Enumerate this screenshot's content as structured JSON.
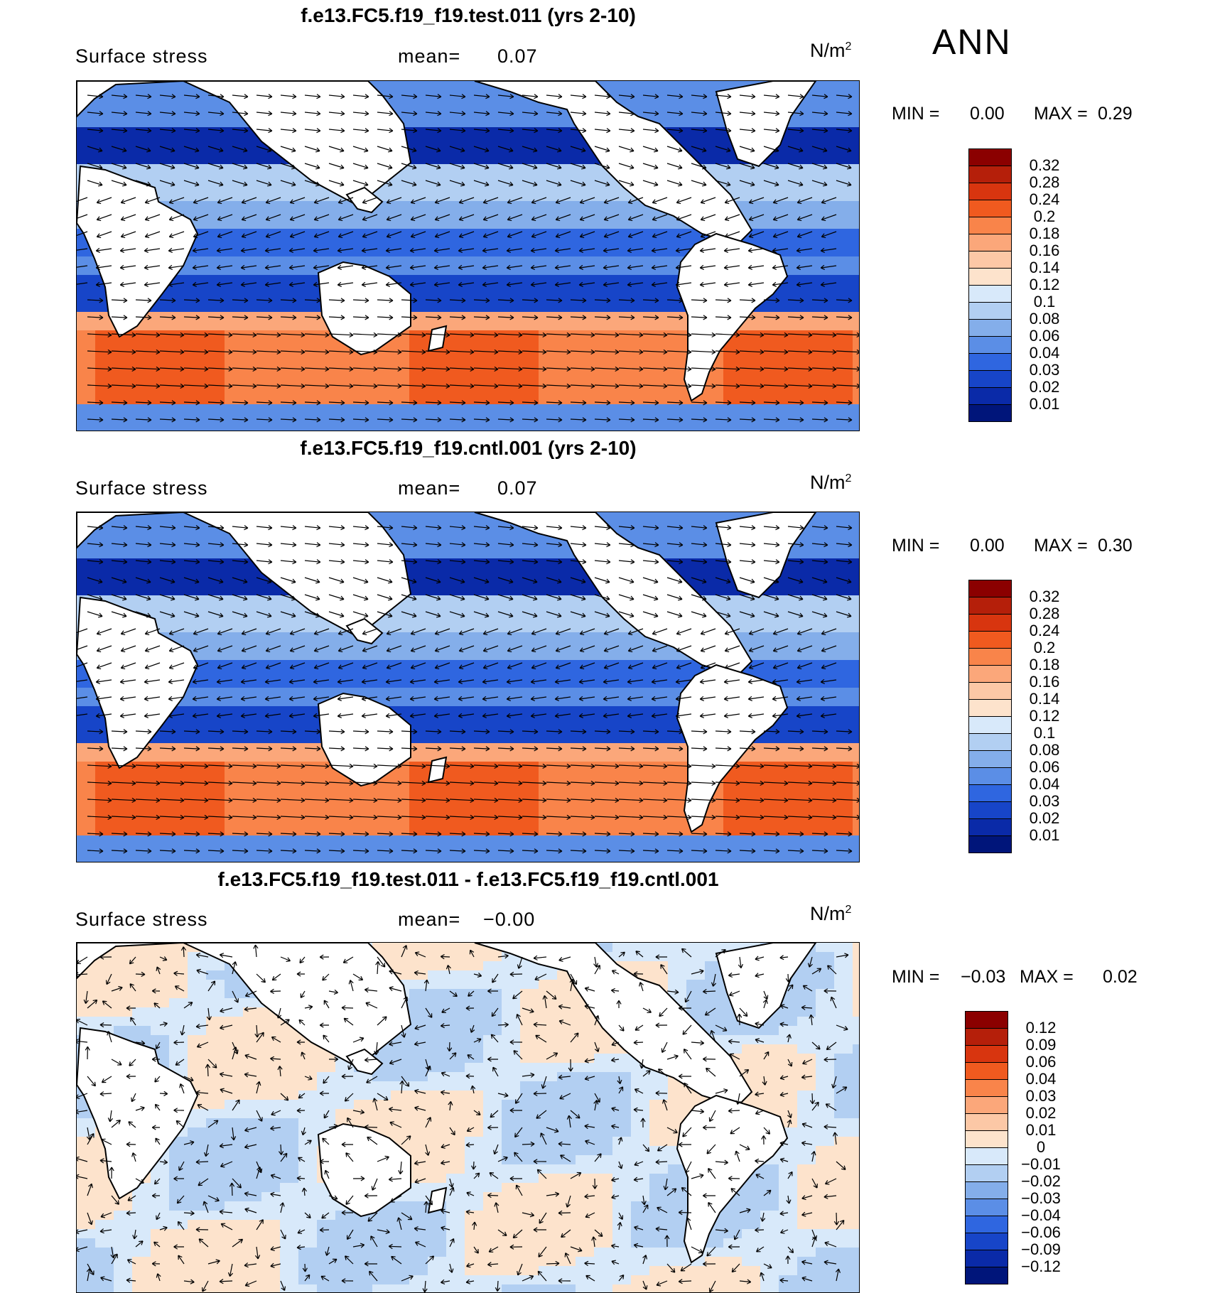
{
  "season": "ANN",
  "panels": [
    {
      "title": "f.e13.FC5.f19_f19.test.011 (yrs 2-10)",
      "variable": "Surface stress",
      "mean_label": "mean=",
      "mean_value": "0.07",
      "units": "N/m",
      "units_exp": "2",
      "min_label": "MIN =",
      "min_value": "0.00",
      "max_label": "MAX =",
      "max_value": "0.29",
      "colorbar": {
        "labels": [
          "0.32",
          "0.28",
          "0.24",
          "0.2",
          "0.18",
          "0.16",
          "0.14",
          "0.12",
          "0.1",
          "0.08",
          "0.06",
          "0.04",
          "0.03",
          "0.02",
          "0.01"
        ],
        "colors": [
          "#8b0000",
          "#b51f0a",
          "#d8350f",
          "#f05a1f",
          "#f9844a",
          "#fba77a",
          "#fcc8a6",
          "#fde3cc",
          "#d8e9fa",
          "#b2cff2",
          "#84aeea",
          "#5b8ee6",
          "#2f66e0",
          "#1745c8",
          "#0a2aa8",
          "#00157a"
        ]
      }
    },
    {
      "title": "f.e13.FC5.f19_f19.cntl.001 (yrs 2-10)",
      "variable": "Surface stress",
      "mean_label": "mean=",
      "mean_value": "0.07",
      "units": "N/m",
      "units_exp": "2",
      "min_label": "MIN =",
      "min_value": "0.00",
      "max_label": "MAX =",
      "max_value": "0.30",
      "colorbar": {
        "labels": [
          "0.32",
          "0.28",
          "0.24",
          "0.2",
          "0.18",
          "0.16",
          "0.14",
          "0.12",
          "0.1",
          "0.08",
          "0.06",
          "0.04",
          "0.03",
          "0.02",
          "0.01"
        ],
        "colors": [
          "#8b0000",
          "#b51f0a",
          "#d8350f",
          "#f05a1f",
          "#f9844a",
          "#fba77a",
          "#fcc8a6",
          "#fde3cc",
          "#d8e9fa",
          "#b2cff2",
          "#84aeea",
          "#5b8ee6",
          "#2f66e0",
          "#1745c8",
          "#0a2aa8",
          "#00157a"
        ]
      }
    },
    {
      "title": "f.e13.FC5.f19_f19.test.011 - f.e13.FC5.f19_f19.cntl.001",
      "variable": "Surface stress",
      "mean_label": "mean=",
      "mean_value": "−0.00",
      "units": "N/m",
      "units_exp": "2",
      "min_label": "MIN =",
      "min_value": "−0.03",
      "max_label": "MAX =",
      "max_value": "0.02",
      "colorbar": {
        "labels": [
          "0.12",
          "0.09",
          "0.06",
          "0.04",
          "0.03",
          "0.02",
          "0.01",
          "0",
          "−0.01",
          "−0.02",
          "−0.03",
          "−0.04",
          "−0.06",
          "−0.09",
          "−0.12"
        ],
        "colors": [
          "#8b0000",
          "#b51f0a",
          "#d8350f",
          "#f05a1f",
          "#f9844a",
          "#fba77a",
          "#fcc8a6",
          "#fde3cc",
          "#d8e9fa",
          "#b2cff2",
          "#84aeea",
          "#5b8ee6",
          "#2f66e0",
          "#1745c8",
          "#0a2aa8",
          "#00157a"
        ]
      }
    }
  ]
}
